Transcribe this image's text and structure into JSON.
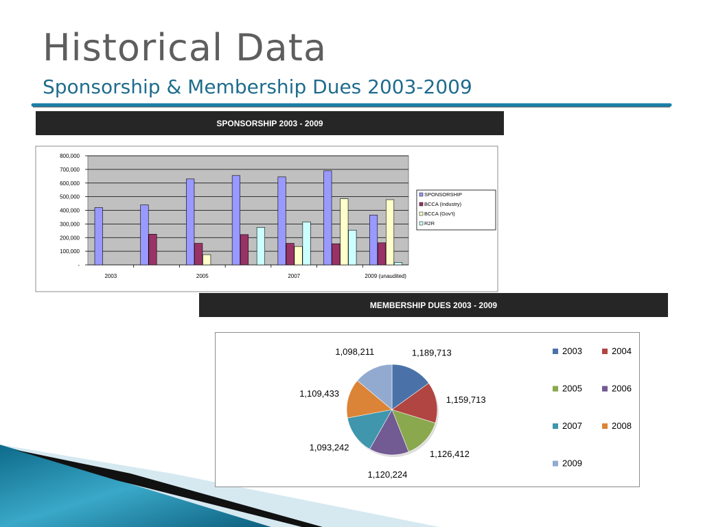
{
  "slide": {
    "title": "Historical Data",
    "subtitle": "Sponsorship & Membership Dues 2003-2009"
  },
  "colors": {
    "accent_line": "#1a7fa6",
    "band_bg": "#262626",
    "plot_bg": "#c0c0c0"
  },
  "sponsorship_header": "SPONSORSHIP 2003 - 2009",
  "membership_header": "MEMBERSHIP DUES 2003 - 2009",
  "chart_data": [
    {
      "type": "bar",
      "x_tick_labels": [
        "2003",
        "2005",
        "2007",
        "2009 (unaudited)"
      ],
      "categories": [
        "2003",
        "2004",
        "2005",
        "2006",
        "2007",
        "2008",
        "2009"
      ],
      "ylim": [
        0,
        800000
      ],
      "y_ticks": [
        "800,000",
        "700,000",
        "600,000",
        "500,000",
        "400,000",
        "300,000",
        "200,000",
        "100,000",
        "-"
      ],
      "grid": true,
      "legend_position": "right",
      "series": [
        {
          "name": "SPONSORSHIP",
          "color": "#9999ff",
          "values": [
            420000,
            440000,
            630000,
            655000,
            645000,
            690000,
            365000
          ]
        },
        {
          "name": "BCCA (Industry)",
          "color": "#993366",
          "values": [
            null,
            225000,
            158000,
            222000,
            158000,
            155000,
            162000
          ]
        },
        {
          "name": "BCCA (Gov't)",
          "color": "#ffffcc",
          "values": [
            null,
            null,
            75000,
            null,
            135000,
            485000,
            478000
          ]
        },
        {
          "name": "R2R",
          "color": "#ccffff",
          "values": [
            null,
            null,
            null,
            275000,
            315000,
            255000,
            18000
          ]
        }
      ]
    },
    {
      "type": "pie",
      "categories": [
        "2003",
        "2004",
        "2005",
        "2006",
        "2007",
        "2008",
        "2009"
      ],
      "values": [
        1189713,
        1159713,
        1126412,
        1120224,
        1093242,
        1109433,
        1098211
      ],
      "value_labels": [
        "1,189,713",
        "1,159,713",
        "1,126,412",
        "1,120,224",
        "1,093,242",
        "1,109,433",
        "1,098,211"
      ],
      "colors": [
        "#4a72a8",
        "#b04542",
        "#8aa84e",
        "#725a92",
        "#3f96ad",
        "#db8437",
        "#93aad0"
      ],
      "legend_position": "right"
    }
  ]
}
